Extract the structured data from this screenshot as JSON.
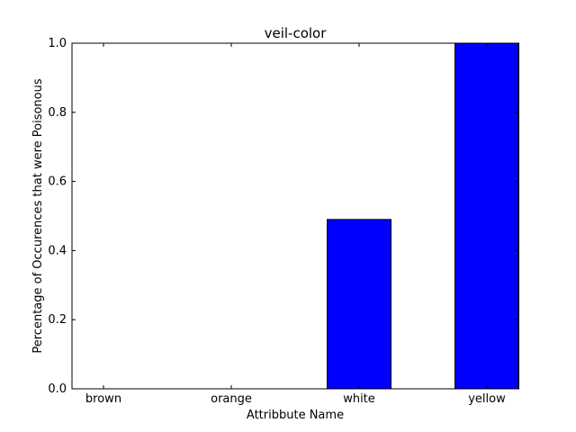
{
  "chart_data": {
    "type": "bar",
    "title": "veil-color",
    "xlabel": "Attribbute Name",
    "ylabel": "Percentage of Occurences that were Poisonous",
    "categories": [
      "brown",
      "orange",
      "white",
      "yellow"
    ],
    "values": [
      0.0,
      0.0,
      0.49,
      1.0
    ],
    "ylim": [
      0,
      1.0
    ],
    "yticks": [
      "0.0",
      "0.2",
      "0.4",
      "0.6",
      "0.8",
      "1.0"
    ],
    "grid": false,
    "bar_color": "#0000ff",
    "edge_color": "#000000"
  }
}
